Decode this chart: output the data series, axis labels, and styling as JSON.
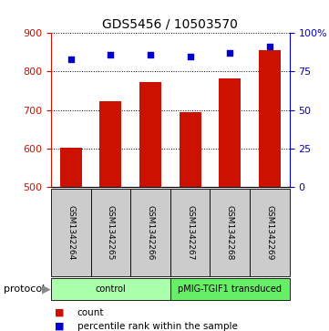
{
  "title": "GDS5456 / 10503570",
  "samples": [
    "GSM1342264",
    "GSM1342265",
    "GSM1342266",
    "GSM1342267",
    "GSM1342268",
    "GSM1342269"
  ],
  "bar_values": [
    601,
    722,
    773,
    695,
    783,
    855
  ],
  "percentile_values": [
    83,
    86,
    86,
    85,
    87,
    91
  ],
  "bar_bottom": 500,
  "bar_color": "#cc1100",
  "dot_color": "#0000cc",
  "left_ylim": [
    500,
    900
  ],
  "right_ylim": [
    0,
    100
  ],
  "left_yticks": [
    500,
    600,
    700,
    800,
    900
  ],
  "right_yticks": [
    0,
    25,
    50,
    75,
    100
  ],
  "right_yticklabels": [
    "0",
    "25",
    "50",
    "75",
    "100%"
  ],
  "groups": [
    {
      "label": "control",
      "indices": [
        0,
        1,
        2
      ],
      "color": "#aaffaa"
    },
    {
      "label": "pMIG-TGIF1 transduced",
      "indices": [
        3,
        4,
        5
      ],
      "color": "#66ee66"
    }
  ],
  "protocol_label": "protocol",
  "legend_count_label": "count",
  "legend_pct_label": "percentile rank within the sample",
  "background_color": "#ffffff",
  "sample_bg_color": "#cccccc"
}
